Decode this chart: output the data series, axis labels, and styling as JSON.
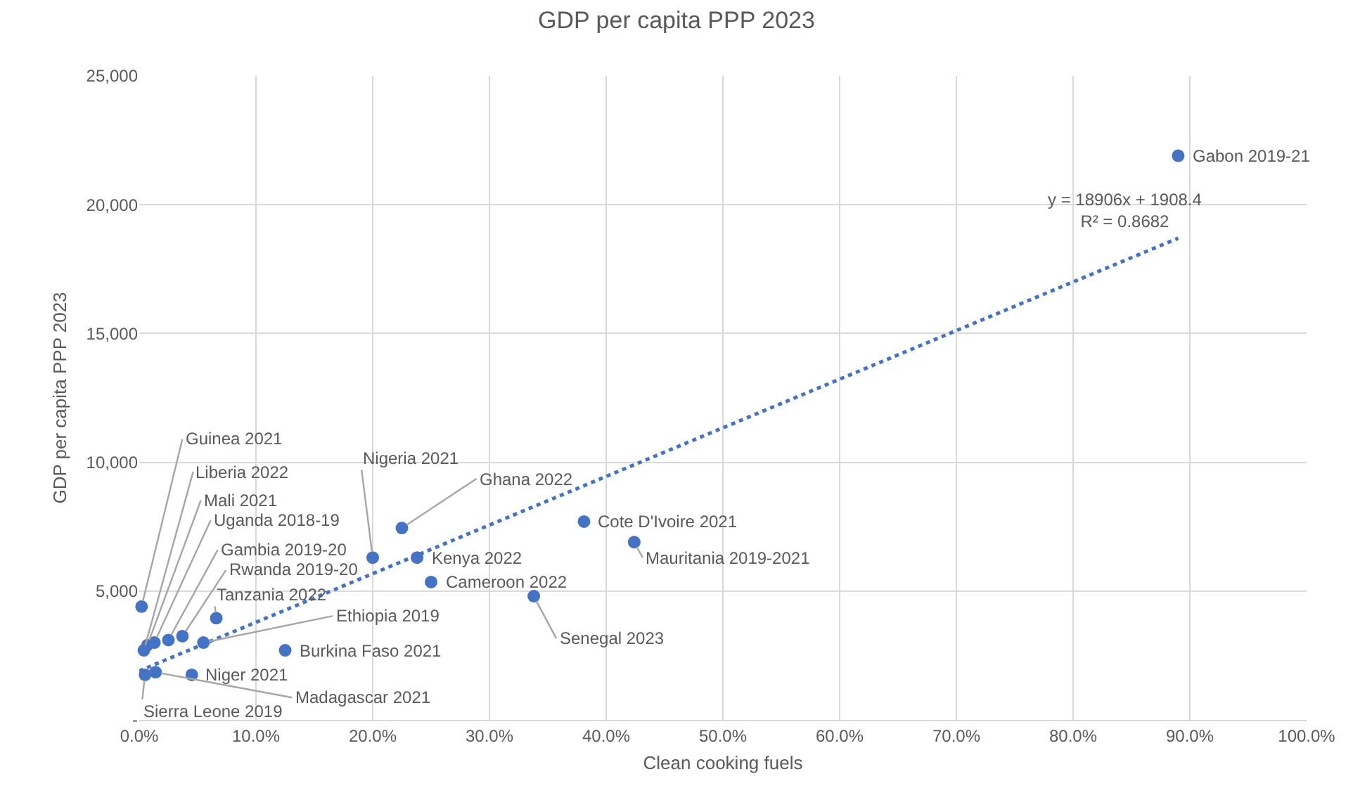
{
  "chart_data": {
    "type": "scatter",
    "title": "GDP per capita PPP 2023",
    "xlabel": "Clean cooking fuels",
    "ylabel": "GDP per capita PPP 2023",
    "series": [
      {
        "color": "#4472c4",
        "marker": "circle",
        "x": [
          89,
          0.2,
          0.4,
          0.7,
          1.3,
          2.5,
          3.7,
          6.6,
          5.5,
          12.5,
          4.5,
          1.4,
          0.5,
          20,
          22.5,
          23.8,
          25,
          38.1,
          42.4,
          33.8
        ],
        "values": [
          21900,
          4400,
          2700,
          2900,
          3000,
          3100,
          3250,
          3950,
          3000,
          2700,
          1750,
          1850,
          1750,
          6300,
          7450,
          6300,
          5350,
          7700,
          6900,
          4800
        ]
      },
      {
        "type": "line",
        "color": "#4472c4",
        "line_style": "dotted",
        "marker": "none",
        "x": [
          0,
          89
        ],
        "values": [
          1900,
          18700
        ]
      }
    ],
    "annotations": [
      {
        "text": "Gabon 2019-21",
        "x": 89,
        "y": 21900
      },
      {
        "text": "Guinea 2021",
        "x": 0.2,
        "y": 4400
      },
      {
        "text": "Liberia 2022",
        "x": 0.4,
        "y": 2700
      },
      {
        "text": "Mali 2021",
        "x": 0.7,
        "y": 2900
      },
      {
        "text": "Uganda 2018-19",
        "x": 1.3,
        "y": 3000
      },
      {
        "text": "Gambia 2019-20",
        "x": 2.5,
        "y": 3100
      },
      {
        "text": "Rwanda 2019-20",
        "x": 3.7,
        "y": 3250
      },
      {
        "text": "Tanzania 2022",
        "x": 6.6,
        "y": 3950
      },
      {
        "text": "Ethiopia 2019",
        "x": 5.5,
        "y": 3000
      },
      {
        "text": "Burkina Faso 2021",
        "x": 12.5,
        "y": 2700
      },
      {
        "text": "Niger 2021",
        "x": 4.5,
        "y": 1750
      },
      {
        "text": "Madagascar 2021",
        "x": 1.4,
        "y": 1850
      },
      {
        "text": "Sierra Leone 2019",
        "x": 0.5,
        "y": 1750
      },
      {
        "text": "Nigeria 2021",
        "x": 20,
        "y": 6300
      },
      {
        "text": "Ghana 2022",
        "x": 22.5,
        "y": 7450
      },
      {
        "text": "Kenya 2022",
        "x": 23.8,
        "y": 6300
      },
      {
        "text": "Cameroon 2022",
        "x": 25,
        "y": 5350
      },
      {
        "text": "Cote D'Ivoire 2021",
        "x": 38.1,
        "y": 7700
      },
      {
        "text": "Mauritania 2019-2021",
        "x": 42.4,
        "y": 6900
      },
      {
        "text": "Senegal 2023",
        "x": 33.8,
        "y": 4800
      },
      "y = 18906x + 1908.4\nR² = 0.8682"
    ],
    "xlim": [
      0,
      100
    ],
    "ylim": [
      0,
      25000
    ],
    "xticks": [
      {
        "value": 0,
        "label": "0.0%"
      },
      {
        "value": 10,
        "label": "10.0%"
      },
      {
        "value": 20,
        "label": "20.0%"
      },
      {
        "value": 30,
        "label": "30.0%"
      },
      {
        "value": 40,
        "label": "40.0%"
      },
      {
        "value": 50,
        "label": "50.0%"
      },
      {
        "value": 60,
        "label": "60.0%"
      },
      {
        "value": 70,
        "label": "70.0%"
      },
      {
        "value": 80,
        "label": "80.0%"
      },
      {
        "value": 90,
        "label": "90.0%"
      },
      {
        "value": 100,
        "label": "100.0%"
      }
    ],
    "yticks": [
      {
        "value": 0,
        "label": "-"
      },
      {
        "value": 5000,
        "label": "5,000"
      },
      {
        "value": 10000,
        "label": "10,000"
      },
      {
        "value": 15000,
        "label": "15,000"
      },
      {
        "value": 20000,
        "label": "20,000"
      },
      {
        "value": 25000,
        "label": "25,000"
      }
    ],
    "grid": true
  }
}
